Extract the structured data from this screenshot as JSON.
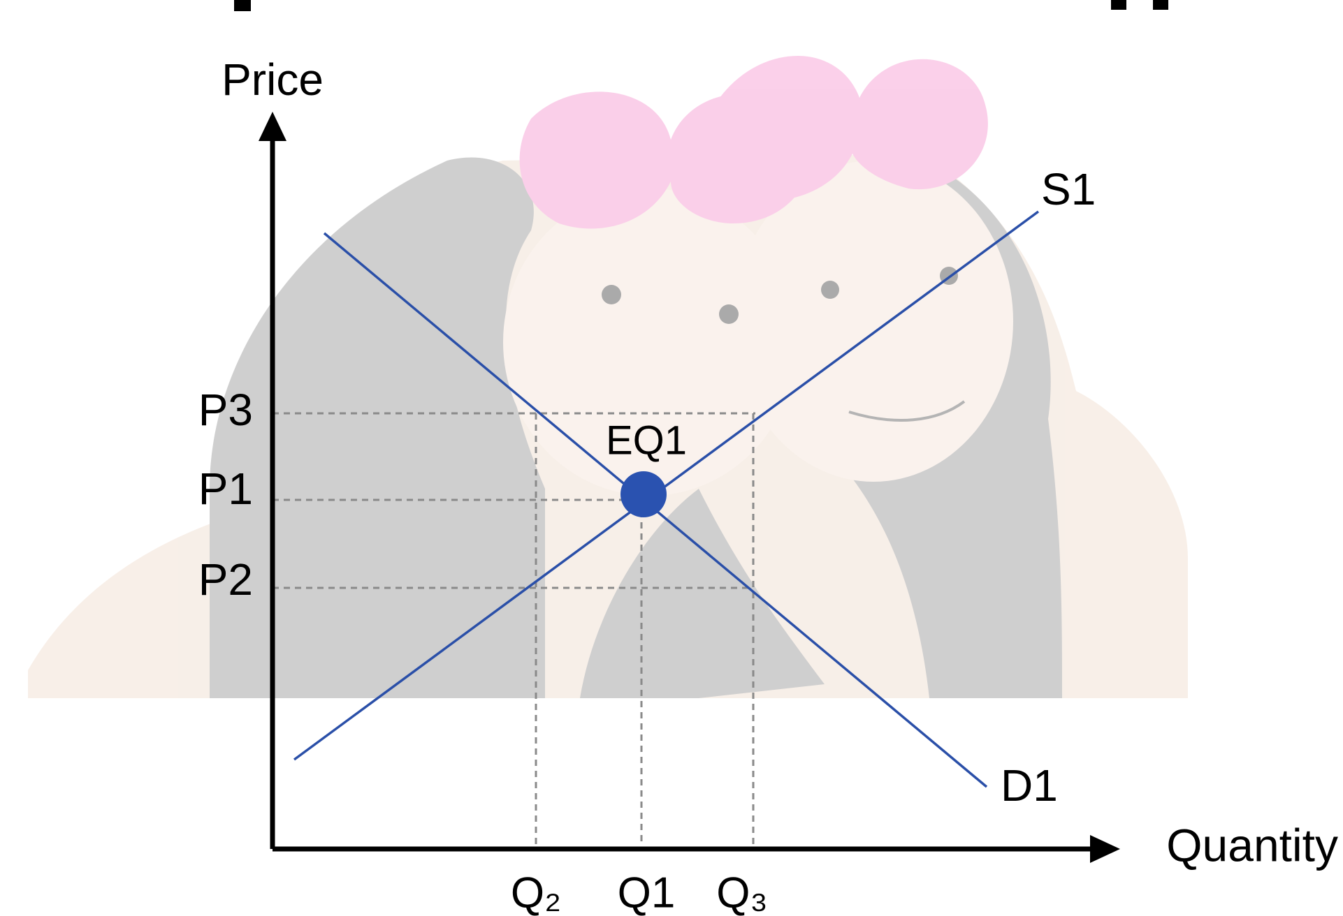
{
  "y_axis_label": "Price",
  "x_axis_label": "Quantity",
  "curves": [
    {
      "label": "S1"
    },
    {
      "label": "D1"
    }
  ],
  "equilibrium_label": "EQ1",
  "price_levels": [
    "P3",
    "P1",
    "P2"
  ],
  "quantity_levels": [
    "Q₂",
    "Q1",
    "Q₃"
  ]
}
